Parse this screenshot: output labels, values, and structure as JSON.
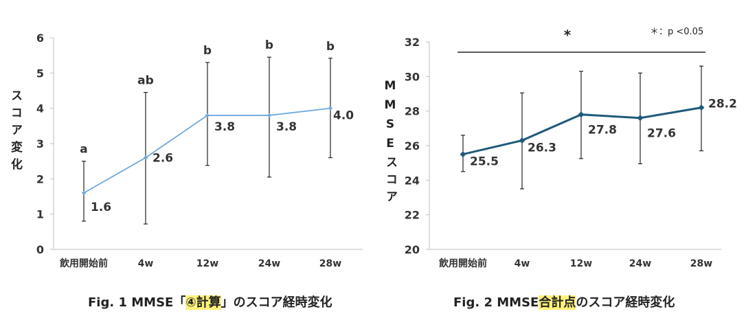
{
  "chart_data": [
    {
      "type": "line",
      "categories": [
        "飲用開始前",
        "4w",
        "12w",
        "24w",
        "28w"
      ],
      "series": [
        {
          "values": [
            1.6,
            2.6,
            3.8,
            3.8,
            4.0
          ],
          "upper": [
            2.5,
            4.45,
            5.3,
            5.45,
            5.42
          ],
          "lower": [
            0.8,
            0.72,
            2.38,
            2.05,
            2.6
          ]
        }
      ],
      "value_labels": [
        "1.6",
        "2.6",
        "3.8",
        "3.8",
        "4.0"
      ],
      "significance_labels": [
        "a",
        "ab",
        "b",
        "b",
        "b"
      ],
      "ylabel": "スコア変化",
      "ylim": [
        0,
        6
      ],
      "yticks": [
        "0",
        "1",
        "2",
        "3",
        "4",
        "5",
        "6"
      ],
      "line_color": "#6fa8dc",
      "caption": {
        "prefix": "Fig. 1 MMSE「",
        "highlight": "④計算",
        "suffix": "」のスコア経時変化"
      }
    },
    {
      "type": "line",
      "categories": [
        "飲用開始前",
        "4w",
        "12w",
        "24w",
        "28w"
      ],
      "series": [
        {
          "values": [
            25.5,
            26.3,
            27.8,
            27.6,
            28.2
          ],
          "upper": [
            26.6,
            29.05,
            30.3,
            30.2,
            30.6
          ],
          "lower": [
            24.5,
            23.5,
            25.25,
            24.95,
            25.7
          ]
        }
      ],
      "value_labels": [
        "25.5",
        "26.3",
        "27.8",
        "27.6",
        "28.2"
      ],
      "ylabel": "MMSEスコア",
      "ylim": [
        20,
        32
      ],
      "yticks": [
        "20",
        "22",
        "24",
        "26",
        "28",
        "30",
        "32"
      ],
      "line_color": "#1f5a7a",
      "significance_mark": "*",
      "significance_note": "＊：p <0.05",
      "caption": {
        "prefix": "Fig. 2 MMSE",
        "highlight": "合計点",
        "suffix": "のスコア経時変化"
      }
    }
  ]
}
